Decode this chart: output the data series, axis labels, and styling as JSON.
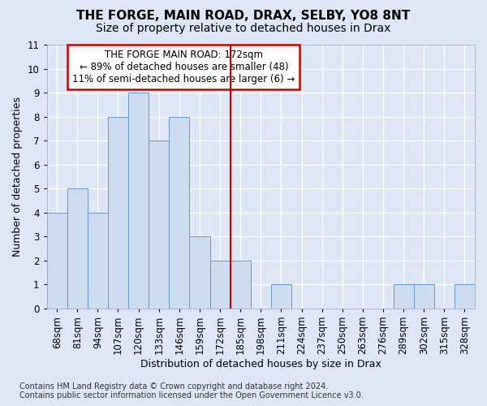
{
  "title": "THE FORGE, MAIN ROAD, DRAX, SELBY, YO8 8NT",
  "subtitle": "Size of property relative to detached houses in Drax",
  "xlabel": "Distribution of detached houses by size in Drax",
  "ylabel": "Number of detached properties",
  "categories": [
    "68sqm",
    "81sqm",
    "94sqm",
    "107sqm",
    "120sqm",
    "133sqm",
    "146sqm",
    "159sqm",
    "172sqm",
    "185sqm",
    "198sqm",
    "211sqm",
    "224sqm",
    "237sqm",
    "250sqm",
    "263sqm",
    "276sqm",
    "289sqm",
    "302sqm",
    "315sqm",
    "328sqm"
  ],
  "values": [
    4,
    5,
    4,
    8,
    9,
    7,
    8,
    3,
    2,
    2,
    0,
    1,
    0,
    0,
    0,
    0,
    0,
    1,
    1,
    0,
    1
  ],
  "bar_color": "#cddcee",
  "bar_edge_color": "#6699cc",
  "vline_x": 8.5,
  "vline_color": "#cc0000",
  "ylim": [
    0,
    11
  ],
  "yticks": [
    0,
    1,
    2,
    3,
    4,
    5,
    6,
    7,
    8,
    9,
    10,
    11
  ],
  "annotation_text": "THE FORGE MAIN ROAD: 172sqm\n← 89% of detached houses are smaller (48)\n11% of semi-detached houses are larger (6) →",
  "annotation_box_color": "#ffffff",
  "annotation_box_edge": "#cc0000",
  "footer": "Contains HM Land Registry data © Crown copyright and database right 2024.\nContains public sector information licensed under the Open Government Licence v3.0.",
  "bg_color": "#dce6f5",
  "plot_bg_color": "#dce6f5",
  "grid_color": "#ffffff",
  "title_fontsize": 11,
  "subtitle_fontsize": 10,
  "tick_fontsize": 8.5,
  "ylabel_fontsize": 9,
  "xlabel_fontsize": 9,
  "annot_fontsize": 8.5,
  "footer_fontsize": 7
}
